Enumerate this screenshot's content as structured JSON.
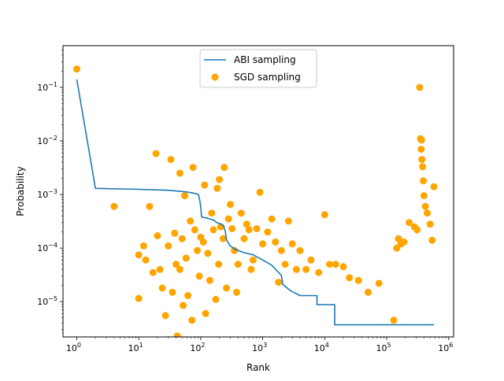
{
  "chart_data": {
    "type": "scatter",
    "title": "",
    "xlabel": "Rank",
    "ylabel": "Probability",
    "xscale": "log",
    "yscale": "log",
    "xlim": [
      0.6,
      1200000
    ],
    "ylim": [
      2.2e-06,
      0.6
    ],
    "x_ticks": [
      {
        "value": 1,
        "base": "10",
        "exp": "0"
      },
      {
        "value": 10,
        "base": "10",
        "exp": "1"
      },
      {
        "value": 100,
        "base": "10",
        "exp": "2"
      },
      {
        "value": 1000,
        "base": "10",
        "exp": "3"
      },
      {
        "value": 10000,
        "base": "10",
        "exp": "4"
      },
      {
        "value": 100000,
        "base": "10",
        "exp": "5"
      },
      {
        "value": 1000000,
        "base": "10",
        "exp": "6"
      }
    ],
    "y_ticks": [
      {
        "value": 1e-05,
        "base": "10",
        "exp": "−5"
      },
      {
        "value": 0.0001,
        "base": "10",
        "exp": "−4"
      },
      {
        "value": 0.001,
        "base": "10",
        "exp": "−3"
      },
      {
        "value": 0.01,
        "base": "10",
        "exp": "−2"
      },
      {
        "value": 0.1,
        "base": "10",
        "exp": "−1"
      }
    ],
    "grid": false,
    "legend_position": "top-center",
    "legend": [
      {
        "label": "ABI sampling",
        "kind": "line",
        "color": "#1f77b4"
      },
      {
        "label": "SGD sampling",
        "kind": "marker",
        "color": "#ffa500"
      }
    ],
    "series": [
      {
        "name": "ABI sampling",
        "kind": "step-line",
        "color": "#1f77b4",
        "points": [
          [
            1,
            0.14
          ],
          [
            2,
            0.0013
          ],
          [
            10,
            0.00125
          ],
          [
            30,
            0.0012
          ],
          [
            60,
            0.00112
          ],
          [
            80,
            0.00105
          ],
          [
            92,
            0.001
          ],
          [
            96,
            0.0008
          ],
          [
            100,
            0.0006
          ],
          [
            103,
            0.00038
          ],
          [
            130,
            0.00036
          ],
          [
            165,
            0.00033
          ],
          [
            180,
            0.0003
          ],
          [
            215,
            0.00028
          ],
          [
            235,
            0.00026
          ],
          [
            250,
            0.0002
          ],
          [
            258,
            0.00015
          ],
          [
            272,
            0.00013
          ],
          [
            300,
            0.00011
          ],
          [
            360,
            9.5e-05
          ],
          [
            500,
            8.2e-05
          ],
          [
            700,
            7.5e-05
          ],
          [
            1000,
            6e-05
          ],
          [
            1400,
            4.8e-05
          ],
          [
            2000,
            3.1e-05
          ],
          [
            2100,
            2.1e-05
          ],
          [
            2800,
            1.6e-05
          ],
          [
            4000,
            1.3e-05
          ],
          [
            7500,
            1.3e-05
          ],
          [
            7500,
            8.8e-06
          ],
          [
            14500,
            8.8e-06
          ],
          [
            14500,
            3.7e-06
          ],
          [
            580000,
            3.7e-06
          ]
        ]
      },
      {
        "name": "SGD sampling",
        "kind": "scatter",
        "color": "#ffa500",
        "points": [
          [
            1,
            0.22
          ],
          [
            4,
            0.0006
          ],
          [
            10,
            7.5e-05
          ],
          [
            12,
            0.00011
          ],
          [
            10,
            1.15e-05
          ],
          [
            13,
            6e-05
          ],
          [
            15,
            0.0006
          ],
          [
            17,
            3.5e-05
          ],
          [
            19,
            0.0058
          ],
          [
            20,
            0.00017
          ],
          [
            22,
            4e-05
          ],
          [
            24,
            1.8e-05
          ],
          [
            27,
            5.5e-06
          ],
          [
            30,
            0.00011
          ],
          [
            33,
            0.0045
          ],
          [
            35,
            1.5e-05
          ],
          [
            38,
            0.00019
          ],
          [
            40,
            5e-05
          ],
          [
            42,
            2.3e-06
          ],
          [
            46,
            0.0025
          ],
          [
            46,
            4e-05
          ],
          [
            50,
            0.00015
          ],
          [
            52,
            8.5e-06
          ],
          [
            55,
            0.00095
          ],
          [
            58,
            6.5e-05
          ],
          [
            62,
            1.3e-05
          ],
          [
            68,
            0.00032
          ],
          [
            72,
            4.5e-06
          ],
          [
            75,
            0.0032
          ],
          [
            80,
            0.00022
          ],
          [
            88,
            9e-05
          ],
          [
            95,
            3e-05
          ],
          [
            100,
            0.00016
          ],
          [
            110,
            0.00013
          ],
          [
            115,
            0.0015
          ],
          [
            120,
            6e-06
          ],
          [
            130,
            8e-05
          ],
          [
            140,
            2.5e-05
          ],
          [
            150,
            0.00045
          ],
          [
            160,
            0.00022
          ],
          [
            175,
            1.1e-05
          ],
          [
            185,
            0.0013
          ],
          [
            195,
            5e-05
          ],
          [
            200,
            0.0019
          ],
          [
            210,
            0.00025
          ],
          [
            230,
            0.00015
          ],
          [
            240,
            0.0032
          ],
          [
            260,
            1.8e-05
          ],
          [
            280,
            0.00035
          ],
          [
            300,
            0.00065
          ],
          [
            320,
            0.00023
          ],
          [
            350,
            9e-05
          ],
          [
            380,
            1.5e-05
          ],
          [
            400,
            5e-05
          ],
          [
            450,
            0.00045
          ],
          [
            500,
            0.00015
          ],
          [
            550,
            0.00028
          ],
          [
            600,
            0.00022
          ],
          [
            650,
            4e-05
          ],
          [
            700,
            6e-05
          ],
          [
            800,
            0.00023
          ],
          [
            900,
            0.0011
          ],
          [
            1000,
            0.00012
          ],
          [
            1200,
            0.0002
          ],
          [
            1400,
            0.00035
          ],
          [
            1600,
            0.00013
          ],
          [
            1800,
            2.3e-05
          ],
          [
            2000,
            9e-05
          ],
          [
            2300,
            5e-05
          ],
          [
            2600,
            0.00032
          ],
          [
            3000,
            0.00012
          ],
          [
            3500,
            4e-05
          ],
          [
            4000,
            9e-05
          ],
          [
            5000,
            4e-05
          ],
          [
            6000,
            6e-05
          ],
          [
            8000,
            3.5e-05
          ],
          [
            10000,
            0.00042
          ],
          [
            12000,
            5e-05
          ],
          [
            15000,
            5e-05
          ],
          [
            20000,
            4.5e-05
          ],
          [
            25000,
            2.8e-05
          ],
          [
            35000,
            2.5e-05
          ],
          [
            50000,
            1.5e-05
          ],
          [
            75000,
            2.2e-05
          ],
          [
            130000,
            4.5e-06
          ],
          [
            145000,
            0.0001
          ],
          [
            155000,
            0.00015
          ],
          [
            170000,
            0.00012
          ],
          [
            190000,
            0.00013
          ],
          [
            230000,
            0.0003
          ],
          [
            280000,
            0.00025
          ],
          [
            310000,
            0.00022
          ],
          [
            340000,
            0.1
          ],
          [
            350000,
            0.011
          ],
          [
            360000,
            0.007
          ],
          [
            365000,
            0.0104
          ],
          [
            370000,
            0.0045
          ],
          [
            380000,
            0.0033
          ],
          [
            390000,
            0.0018
          ],
          [
            400000,
            0.00095
          ],
          [
            420000,
            0.0006
          ],
          [
            450000,
            0.00045
          ],
          [
            500000,
            0.00028
          ],
          [
            540000,
            0.00014
          ],
          [
            580000,
            0.0014
          ]
        ]
      }
    ]
  }
}
